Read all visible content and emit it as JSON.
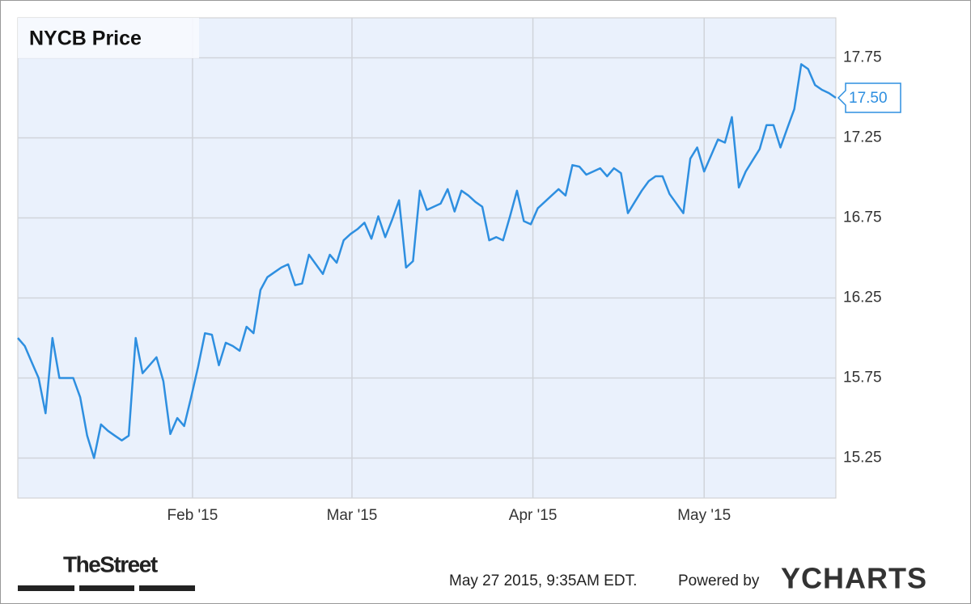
{
  "chart_data": {
    "type": "line",
    "title": "NYCB Price",
    "color": "#2e8fe0",
    "plot_background": "#eaf1fc",
    "values": [
      16.0,
      15.95,
      15.85,
      15.75,
      15.53,
      16.0,
      15.75,
      15.75,
      15.75,
      15.63,
      15.39,
      15.25,
      15.46,
      15.42,
      15.39,
      15.36,
      15.39,
      16.0,
      15.78,
      15.83,
      15.88,
      15.73,
      15.4,
      15.5,
      15.45,
      15.63,
      15.82,
      16.03,
      16.02,
      15.83,
      15.97,
      15.95,
      15.92,
      16.07,
      16.03,
      16.3,
      16.38,
      16.41,
      16.44,
      16.46,
      16.33,
      16.34,
      16.52,
      16.46,
      16.4,
      16.52,
      16.47,
      16.61,
      16.65,
      16.68,
      16.72,
      16.62,
      16.76,
      16.63,
      16.74,
      16.86,
      16.44,
      16.48,
      16.92,
      16.8,
      16.82,
      16.84,
      16.93,
      16.79,
      16.92,
      16.89,
      16.85,
      16.82,
      16.61,
      16.63,
      16.61,
      16.76,
      16.92,
      16.73,
      16.71,
      16.81,
      16.85,
      16.89,
      16.93,
      16.89,
      17.08,
      17.07,
      17.02,
      17.04,
      17.06,
      17.01,
      17.06,
      17.03,
      16.78,
      16.85,
      16.92,
      16.98,
      17.01,
      17.01,
      16.9,
      16.84,
      16.78,
      17.12,
      17.19,
      17.04,
      17.14,
      17.24,
      17.22,
      17.38,
      16.94,
      17.04,
      17.11,
      17.18,
      17.33,
      17.33,
      17.19,
      17.31,
      17.43,
      17.71,
      17.68,
      17.58,
      17.55,
      17.53,
      17.5
    ],
    "last_value_label": "17.50",
    "xlim": [
      0,
      118
    ],
    "xticks": [
      {
        "value": 25.2,
        "label": "Feb '15"
      },
      {
        "value": 48.2,
        "label": "Mar '15"
      },
      {
        "value": 74.3,
        "label": "Apr '15"
      },
      {
        "value": 99,
        "label": "May '15"
      }
    ],
    "ylim": [
      15.0,
      18.0
    ],
    "yticks": [
      15.25,
      15.75,
      16.25,
      16.75,
      17.25,
      17.75
    ],
    "grid": true,
    "footer": {
      "source_logo": "TheStreet",
      "timestamp": "May 27 2015, 9:35AM EDT.",
      "powered_by": "Powered by",
      "brand": "YCHARTS"
    }
  }
}
